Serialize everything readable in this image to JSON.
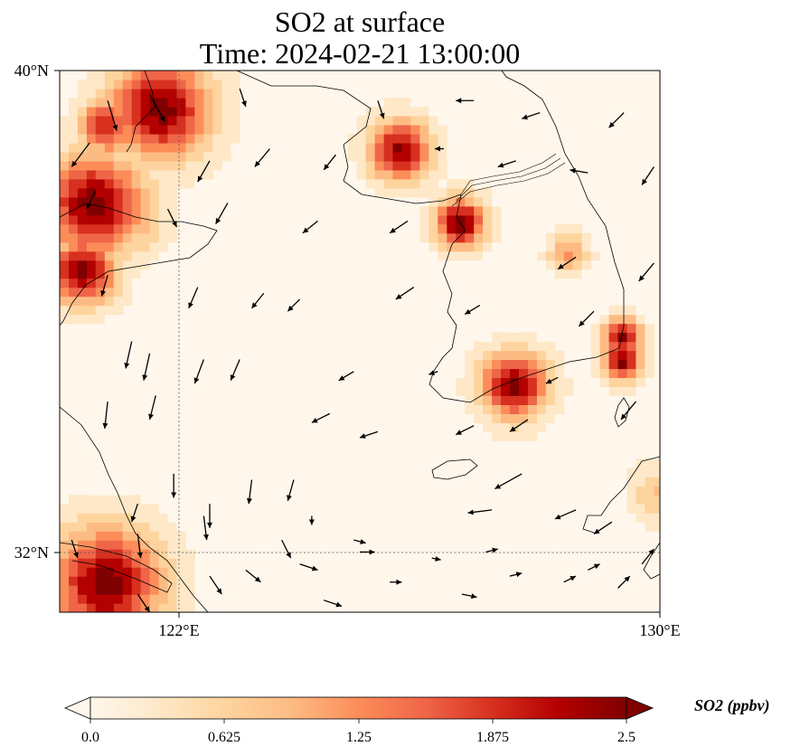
{
  "title": {
    "line1": "SO2 at surface",
    "line2": "Time: 2024-02-21 13:00:00"
  },
  "axes": {
    "y_ticks": [
      "40°N",
      "32°N"
    ],
    "x_ticks": [
      "122°E",
      "130°E"
    ]
  },
  "chart_data": {
    "type": "heatmap",
    "variable": "SO2 at surface",
    "time": "2024-02-21 13:00:00",
    "lon_range": [
      120,
      130
    ],
    "lat_range": [
      31,
      40
    ],
    "gridlines": {
      "lon": [
        122
      ],
      "lat": [
        32
      ]
    },
    "colorbar": {
      "label": "SO2 (ppbv)",
      "min": 0.0,
      "max": 2.5,
      "ticks": [
        "0.0",
        "0.625",
        "1.25",
        "1.875",
        "2.5"
      ],
      "colormap": [
        "#fff7ec",
        "#fee8c8",
        "#fdd49e",
        "#fdbb84",
        "#fc8d59",
        "#ef6548",
        "#d7301f",
        "#b30000",
        "#7f0000"
      ]
    },
    "hotspots": [
      {
        "lon": 121.6,
        "lat": 39.3,
        "radius": 0.9,
        "value": 2.5
      },
      {
        "lon": 120.5,
        "lat": 37.7,
        "radius": 0.9,
        "value": 2.5
      },
      {
        "lon": 120.3,
        "lat": 36.6,
        "radius": 0.6,
        "value": 2.5
      },
      {
        "lon": 120.7,
        "lat": 39.0,
        "radius": 0.5,
        "value": 2.0
      },
      {
        "lon": 125.6,
        "lat": 38.6,
        "radius": 0.55,
        "value": 2.4
      },
      {
        "lon": 126.6,
        "lat": 37.4,
        "radius": 0.45,
        "value": 2.5
      },
      {
        "lon": 128.4,
        "lat": 36.9,
        "radius": 0.35,
        "value": 1.2
      },
      {
        "lon": 129.3,
        "lat": 35.5,
        "radius": 0.35,
        "value": 2.5
      },
      {
        "lon": 129.3,
        "lat": 35.1,
        "radius": 0.35,
        "value": 2.5
      },
      {
        "lon": 127.5,
        "lat": 34.7,
        "radius": 0.6,
        "value": 2.5
      },
      {
        "lon": 120.7,
        "lat": 31.4,
        "radius": 1.0,
        "value": 2.5
      },
      {
        "lon": 129.9,
        "lat": 32.9,
        "radius": 0.5,
        "value": 0.8
      },
      {
        "lon": 121.3,
        "lat": 37.3,
        "radius": 0.45,
        "value": 0.9
      }
    ],
    "wind_arrows": [
      {
        "lon": 120.8,
        "lat": 39.5,
        "dlon": 0.15,
        "dlat": -0.5
      },
      {
        "lon": 121.5,
        "lat": 39.6,
        "dlon": 0.25,
        "dlat": -0.45
      },
      {
        "lon": 123.0,
        "lat": 39.7,
        "dlon": 0.1,
        "dlat": -0.3
      },
      {
        "lon": 125.3,
        "lat": 39.5,
        "dlon": 0.1,
        "dlat": -0.3
      },
      {
        "lon": 126.9,
        "lat": 39.5,
        "dlon": -0.3,
        "dlat": 0.0
      },
      {
        "lon": 128.0,
        "lat": 39.3,
        "dlon": -0.3,
        "dlat": -0.1
      },
      {
        "lon": 129.4,
        "lat": 39.3,
        "dlon": -0.25,
        "dlat": -0.25
      },
      {
        "lon": 120.5,
        "lat": 38.8,
        "dlon": -0.3,
        "dlat": -0.4
      },
      {
        "lon": 122.5,
        "lat": 38.5,
        "dlon": -0.2,
        "dlat": -0.35
      },
      {
        "lon": 123.5,
        "lat": 38.7,
        "dlon": -0.25,
        "dlat": -0.3
      },
      {
        "lon": 124.6,
        "lat": 38.6,
        "dlon": -0.2,
        "dlat": -0.25
      },
      {
        "lon": 126.4,
        "lat": 38.7,
        "dlon": -0.15,
        "dlat": 0.0
      },
      {
        "lon": 127.6,
        "lat": 38.5,
        "dlon": -0.3,
        "dlat": -0.1
      },
      {
        "lon": 128.8,
        "lat": 38.3,
        "dlon": -0.3,
        "dlat": 0.05
      },
      {
        "lon": 129.9,
        "lat": 38.4,
        "dlon": -0.2,
        "dlat": -0.3
      },
      {
        "lon": 120.6,
        "lat": 38.0,
        "dlon": -0.15,
        "dlat": -0.3
      },
      {
        "lon": 121.8,
        "lat": 37.7,
        "dlon": 0.15,
        "dlat": -0.3
      },
      {
        "lon": 122.8,
        "lat": 37.8,
        "dlon": -0.2,
        "dlat": -0.35
      },
      {
        "lon": 124.3,
        "lat": 37.5,
        "dlon": -0.25,
        "dlat": -0.2
      },
      {
        "lon": 125.8,
        "lat": 37.5,
        "dlon": -0.3,
        "dlat": -0.2
      },
      {
        "lon": 128.6,
        "lat": 36.9,
        "dlon": -0.3,
        "dlat": -0.2
      },
      {
        "lon": 129.9,
        "lat": 36.8,
        "dlon": -0.25,
        "dlat": -0.3
      },
      {
        "lon": 120.8,
        "lat": 36.6,
        "dlon": -0.1,
        "dlat": -0.35
      },
      {
        "lon": 122.3,
        "lat": 36.4,
        "dlon": -0.15,
        "dlat": -0.35
      },
      {
        "lon": 123.4,
        "lat": 36.3,
        "dlon": -0.2,
        "dlat": -0.25
      },
      {
        "lon": 124.0,
        "lat": 36.2,
        "dlon": -0.2,
        "dlat": -0.2
      },
      {
        "lon": 125.9,
        "lat": 36.4,
        "dlon": -0.3,
        "dlat": -0.2
      },
      {
        "lon": 127.0,
        "lat": 36.1,
        "dlon": -0.25,
        "dlat": -0.15
      },
      {
        "lon": 128.9,
        "lat": 36.0,
        "dlon": -0.25,
        "dlat": -0.25
      },
      {
        "lon": 121.2,
        "lat": 35.5,
        "dlon": -0.1,
        "dlat": -0.45
      },
      {
        "lon": 121.5,
        "lat": 35.3,
        "dlon": -0.1,
        "dlat": -0.45
      },
      {
        "lon": 122.4,
        "lat": 35.2,
        "dlon": -0.15,
        "dlat": -0.4
      },
      {
        "lon": 123.0,
        "lat": 35.2,
        "dlon": -0.15,
        "dlat": -0.35
      },
      {
        "lon": 124.9,
        "lat": 35.0,
        "dlon": -0.25,
        "dlat": -0.15
      },
      {
        "lon": 126.3,
        "lat": 35.0,
        "dlon": -0.15,
        "dlat": -0.05
      },
      {
        "lon": 128.3,
        "lat": 34.9,
        "dlon": -0.2,
        "dlat": -0.1
      },
      {
        "lon": 129.6,
        "lat": 34.5,
        "dlon": -0.25,
        "dlat": -0.3
      },
      {
        "lon": 120.8,
        "lat": 34.5,
        "dlon": -0.05,
        "dlat": -0.45
      },
      {
        "lon": 121.6,
        "lat": 34.6,
        "dlon": -0.1,
        "dlat": -0.4
      },
      {
        "lon": 124.5,
        "lat": 34.3,
        "dlon": -0.3,
        "dlat": -0.15
      },
      {
        "lon": 125.3,
        "lat": 34.0,
        "dlon": -0.3,
        "dlat": -0.1
      },
      {
        "lon": 126.9,
        "lat": 34.1,
        "dlon": -0.3,
        "dlat": -0.15
      },
      {
        "lon": 127.8,
        "lat": 34.2,
        "dlon": -0.3,
        "dlat": -0.2
      },
      {
        "lon": 121.9,
        "lat": 33.3,
        "dlon": 0.0,
        "dlat": -0.4
      },
      {
        "lon": 123.2,
        "lat": 33.2,
        "dlon": -0.05,
        "dlat": -0.4
      },
      {
        "lon": 123.9,
        "lat": 33.2,
        "dlon": -0.1,
        "dlat": -0.35
      },
      {
        "lon": 127.7,
        "lat": 33.3,
        "dlon": -0.45,
        "dlat": -0.25
      },
      {
        "lon": 127.2,
        "lat": 32.7,
        "dlon": -0.4,
        "dlat": -0.05
      },
      {
        "lon": 121.3,
        "lat": 32.8,
        "dlon": -0.1,
        "dlat": -0.3
      },
      {
        "lon": 122.5,
        "lat": 32.8,
        "dlon": 0.0,
        "dlat": -0.4
      },
      {
        "lon": 124.2,
        "lat": 32.6,
        "dlon": 0.0,
        "dlat": -0.15
      },
      {
        "lon": 128.6,
        "lat": 32.7,
        "dlon": -0.35,
        "dlat": -0.15
      },
      {
        "lon": 129.2,
        "lat": 32.5,
        "dlon": -0.3,
        "dlat": -0.2
      },
      {
        "lon": 120.2,
        "lat": 32.2,
        "dlon": 0.1,
        "dlat": -0.3
      },
      {
        "lon": 121.3,
        "lat": 32.3,
        "dlon": 0.05,
        "dlat": -0.4
      },
      {
        "lon": 122.4,
        "lat": 32.6,
        "dlon": 0.05,
        "dlat": -0.4
      },
      {
        "lon": 123.7,
        "lat": 32.2,
        "dlon": 0.15,
        "dlat": -0.3
      },
      {
        "lon": 124.9,
        "lat": 32.2,
        "dlon": 0.2,
        "dlat": -0.05
      },
      {
        "lon": 126.2,
        "lat": 31.9,
        "dlon": 0.15,
        "dlat": -0.03
      },
      {
        "lon": 127.1,
        "lat": 32.0,
        "dlon": 0.2,
        "dlat": 0.05
      },
      {
        "lon": 128.8,
        "lat": 31.7,
        "dlon": 0.2,
        "dlat": 0.1
      },
      {
        "lon": 129.7,
        "lat": 31.8,
        "dlon": 0.2,
        "dlat": 0.25
      },
      {
        "lon": 125.0,
        "lat": 32.0,
        "dlon": 0.25,
        "dlat": 0.0
      },
      {
        "lon": 122.5,
        "lat": 31.6,
        "dlon": 0.2,
        "dlat": -0.3
      },
      {
        "lon": 123.1,
        "lat": 31.7,
        "dlon": 0.25,
        "dlat": -0.2
      },
      {
        "lon": 124.0,
        "lat": 31.8,
        "dlon": 0.3,
        "dlat": -0.1
      },
      {
        "lon": 125.5,
        "lat": 31.5,
        "dlon": 0.2,
        "dlat": 0.0
      },
      {
        "lon": 127.5,
        "lat": 31.6,
        "dlon": 0.2,
        "dlat": 0.05
      },
      {
        "lon": 128.4,
        "lat": 31.5,
        "dlon": 0.2,
        "dlat": 0.1
      },
      {
        "lon": 129.3,
        "lat": 31.4,
        "dlon": 0.2,
        "dlat": 0.2
      },
      {
        "lon": 124.4,
        "lat": 31.2,
        "dlon": 0.3,
        "dlat": -0.1
      },
      {
        "lon": 126.7,
        "lat": 31.3,
        "dlon": 0.25,
        "dlat": -0.05
      },
      {
        "lon": 121.3,
        "lat": 31.3,
        "dlon": 0.2,
        "dlat": -0.3
      }
    ]
  }
}
